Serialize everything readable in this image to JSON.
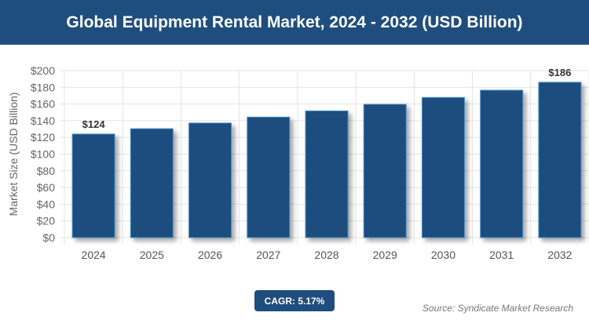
{
  "title": "Global Equipment Rental Market, 2024 - 2032 (USD Billion)",
  "cagr_label": "CAGR: 5.17%",
  "source": "Source: Syndicate Market Research",
  "colors": {
    "header": "#1f4e7e",
    "bar": "#1f4e7e",
    "bar_border": "#4a90c8"
  },
  "chart_data": {
    "type": "bar",
    "title": "Global Equipment Rental Market, 2024 - 2032 (USD Billion)",
    "ylabel": "Market Size (USD Billion)",
    "xlabel": "",
    "categories": [
      "2024",
      "2025",
      "2026",
      "2027",
      "2028",
      "2029",
      "2030",
      "2031",
      "2032"
    ],
    "values": [
      124,
      130.4,
      137.2,
      144.3,
      151.7,
      159.6,
      167.8,
      176.5,
      186
    ],
    "data_labels": {
      "0": "$124",
      "8": "$186"
    },
    "ylim": [
      0,
      200
    ],
    "yticks": [
      "$0",
      "$20",
      "$40",
      "$60",
      "$80",
      "$100",
      "$120",
      "$140",
      "$160",
      "$180",
      "$200"
    ],
    "grid": true,
    "legend": "none"
  }
}
